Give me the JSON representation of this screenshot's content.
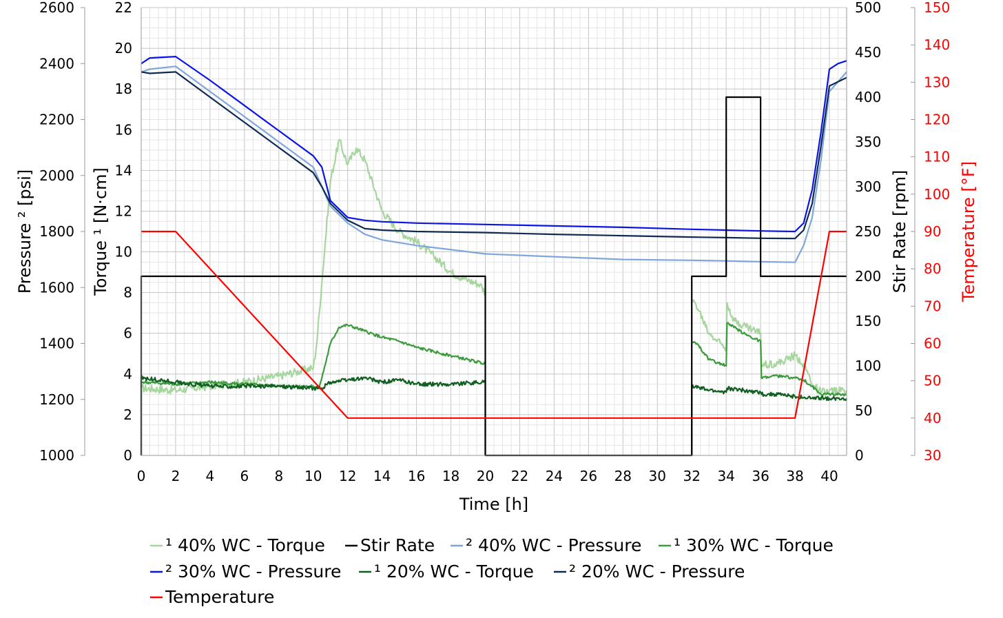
{
  "chart_data": {
    "type": "line",
    "xlabel": "Time [h]",
    "x_ticks": [
      0,
      2,
      4,
      6,
      8,
      10,
      12,
      14,
      16,
      18,
      20,
      22,
      24,
      26,
      28,
      30,
      32,
      34,
      36,
      38,
      40
    ],
    "xlim": [
      0,
      41
    ],
    "axes": {
      "pressure": {
        "label": "Pressure ² [psi]",
        "min": 1000,
        "max": 2600,
        "ticks": [
          1000,
          1200,
          1400,
          1600,
          1800,
          2000,
          2200,
          2400,
          2600
        ]
      },
      "torque": {
        "label": "Torque ¹ [N·cm]",
        "min": 0,
        "max": 22,
        "ticks": [
          0,
          2,
          4,
          6,
          8,
          10,
          12,
          14,
          16,
          18,
          20,
          22
        ]
      },
      "stir": {
        "label": "Stir Rate [rpm]",
        "min": 0,
        "max": 500,
        "ticks": [
          0,
          50,
          100,
          150,
          200,
          250,
          300,
          350,
          400,
          450,
          500
        ]
      },
      "temperature": {
        "label": "Temperature [°F]",
        "min": 30,
        "max": 150,
        "ticks": [
          30,
          40,
          50,
          60,
          70,
          80,
          90,
          100,
          110,
          120,
          130,
          140,
          150
        ],
        "color": "#ff0000"
      }
    },
    "series": [
      {
        "name": "¹ 40% WC - Torque",
        "axis": "torque",
        "color": "#a6d69e",
        "noise": 0.2,
        "points": [
          [
            0,
            3.3
          ],
          [
            2,
            3.2
          ],
          [
            4,
            3.4
          ],
          [
            6,
            3.6
          ],
          [
            8,
            3.9
          ],
          [
            9,
            4.1
          ],
          [
            10,
            4.3
          ],
          [
            10.2,
            5.5
          ],
          [
            10.5,
            8.5
          ],
          [
            11,
            13.5
          ],
          [
            11.5,
            15.5
          ],
          [
            12,
            14.3
          ],
          [
            12.5,
            15.1
          ],
          [
            13,
            14.5
          ],
          [
            14,
            12
          ],
          [
            15,
            11
          ],
          [
            16,
            10.5
          ],
          [
            17,
            9.8
          ],
          [
            18,
            9
          ],
          [
            19,
            8.6
          ],
          [
            19.7,
            8.4
          ],
          [
            20,
            8
          ]
        ]
      },
      {
        "name": "¹ 40% WC - Torque",
        "axis": "torque",
        "color": "#a6d69e",
        "noise": 0.2,
        "points": [
          [
            32,
            7.5
          ],
          [
            32.2,
            7.5
          ],
          [
            33,
            6
          ],
          [
            34,
            5.3
          ],
          [
            34.05,
            7.5
          ],
          [
            34.5,
            6.6
          ],
          [
            36,
            6
          ],
          [
            36.05,
            4.5
          ],
          [
            37,
            4.5
          ],
          [
            38,
            4.9
          ],
          [
            38.5,
            4.5
          ],
          [
            39,
            3.5
          ],
          [
            39.5,
            3.1
          ],
          [
            41,
            3.2
          ]
        ]
      },
      {
        "name": "Stir Rate",
        "axis": "stir",
        "color": "#000000",
        "noise": 0,
        "points": [
          [
            0,
            0
          ],
          [
            0,
            200
          ],
          [
            20,
            200
          ],
          [
            20,
            0
          ],
          [
            32,
            0
          ],
          [
            32,
            200
          ],
          [
            34,
            200
          ],
          [
            34,
            400
          ],
          [
            36,
            400
          ],
          [
            36,
            200
          ],
          [
            41,
            200
          ]
        ]
      },
      {
        "name": "² 40% WC - Pressure",
        "axis": "pressure",
        "color": "#7fa6dc",
        "noise": 0,
        "points": [
          [
            0,
            2370
          ],
          [
            0.5,
            2380
          ],
          [
            2,
            2390
          ],
          [
            4,
            2300
          ],
          [
            6,
            2210
          ],
          [
            8,
            2120
          ],
          [
            10,
            2030
          ],
          [
            10.5,
            1960
          ],
          [
            11,
            1890
          ],
          [
            12,
            1830
          ],
          [
            13,
            1790
          ],
          [
            14,
            1770
          ],
          [
            16,
            1750
          ],
          [
            18,
            1735
          ],
          [
            20,
            1720
          ],
          [
            24,
            1710
          ],
          [
            28,
            1700
          ],
          [
            32,
            1697
          ],
          [
            34,
            1695
          ],
          [
            36,
            1692
          ],
          [
            38,
            1690
          ],
          [
            38.5,
            1750
          ],
          [
            39,
            1850
          ],
          [
            39.5,
            2050
          ],
          [
            40,
            2300
          ],
          [
            41,
            2370
          ]
        ]
      },
      {
        "name": "¹ 30% WC - Torque",
        "axis": "torque",
        "color": "#3d9a3d",
        "noise": 0.07,
        "points": [
          [
            0,
            3.6
          ],
          [
            2,
            3.5
          ],
          [
            4,
            3.6
          ],
          [
            6,
            3.5
          ],
          [
            8,
            3.4
          ],
          [
            10,
            3.4
          ],
          [
            10.3,
            3.3
          ],
          [
            10.5,
            3.8
          ],
          [
            11,
            5.5
          ],
          [
            11.5,
            6.3
          ],
          [
            12,
            6.4
          ],
          [
            13,
            6.1
          ],
          [
            14,
            5.8
          ],
          [
            15,
            5.6
          ],
          [
            16,
            5.3
          ],
          [
            17,
            5.1
          ],
          [
            18,
            4.9
          ],
          [
            19,
            4.7
          ],
          [
            20,
            4.5
          ]
        ]
      },
      {
        "name": "¹ 30% WC - Torque",
        "axis": "torque",
        "color": "#3d9a3d",
        "noise": 0.07,
        "points": [
          [
            32,
            5.6
          ],
          [
            32.3,
            5.5
          ],
          [
            33,
            4.7
          ],
          [
            34,
            4.4
          ],
          [
            34.05,
            6.5
          ],
          [
            35,
            6
          ],
          [
            36,
            5.6
          ],
          [
            36.05,
            3.8
          ],
          [
            37,
            3.9
          ],
          [
            38,
            3.8
          ],
          [
            38.5,
            3.7
          ],
          [
            39,
            3.4
          ],
          [
            39.5,
            3.0
          ],
          [
            41,
            3.0
          ]
        ]
      },
      {
        "name": "² 30% WC - Pressure",
        "axis": "pressure",
        "color": "#0a14e6",
        "noise": 0,
        "points": [
          [
            0,
            2400
          ],
          [
            0.5,
            2420
          ],
          [
            2,
            2425
          ],
          [
            4,
            2340
          ],
          [
            6,
            2250
          ],
          [
            8,
            2160
          ],
          [
            10,
            2070
          ],
          [
            10.5,
            2030
          ],
          [
            11,
            1910
          ],
          [
            12,
            1850
          ],
          [
            13,
            1840
          ],
          [
            14,
            1835
          ],
          [
            16,
            1830
          ],
          [
            20,
            1825
          ],
          [
            24,
            1820
          ],
          [
            28,
            1815
          ],
          [
            32,
            1808
          ],
          [
            34,
            1805
          ],
          [
            36,
            1802
          ],
          [
            38,
            1800
          ],
          [
            38.5,
            1830
          ],
          [
            39,
            1950
          ],
          [
            39.5,
            2150
          ],
          [
            40,
            2380
          ],
          [
            40.5,
            2400
          ],
          [
            41,
            2410
          ]
        ]
      },
      {
        "name": "¹ 20% WC - Torque",
        "axis": "torque",
        "color": "#105f20",
        "noise": 0.1,
        "points": [
          [
            0,
            0
          ],
          [
            0,
            3.8
          ],
          [
            2,
            3.6
          ],
          [
            4,
            3.4
          ],
          [
            6,
            3.4
          ],
          [
            8,
            3.4
          ],
          [
            10,
            3.3
          ],
          [
            10.5,
            3.3
          ],
          [
            11,
            3.6
          ],
          [
            12,
            3.7
          ],
          [
            13,
            3.8
          ],
          [
            14,
            3.6
          ],
          [
            15,
            3.7
          ],
          [
            16,
            3.5
          ],
          [
            18,
            3.5
          ],
          [
            20,
            3.6
          ],
          [
            20,
            0
          ]
        ]
      },
      {
        "name": "¹ 20% WC - Torque",
        "axis": "torque",
        "color": "#105f20",
        "noise": 0.1,
        "points": [
          [
            32,
            0
          ],
          [
            32,
            3.4
          ],
          [
            33,
            3.2
          ],
          [
            34,
            3.1
          ],
          [
            34.05,
            3.3
          ],
          [
            35,
            3.2
          ],
          [
            36,
            3.1
          ],
          [
            36.05,
            3.0
          ],
          [
            37,
            3.0
          ],
          [
            38,
            2.9
          ],
          [
            39,
            2.8
          ],
          [
            40,
            2.8
          ],
          [
            41,
            2.8
          ]
        ]
      },
      {
        "name": "² 20% WC - Pressure",
        "axis": "pressure",
        "color": "#0e2a52",
        "noise": 0,
        "points": [
          [
            0,
            2370
          ],
          [
            0.5,
            2365
          ],
          [
            2,
            2370
          ],
          [
            4,
            2280
          ],
          [
            6,
            2190
          ],
          [
            8,
            2100
          ],
          [
            10,
            2010
          ],
          [
            10.5,
            1960
          ],
          [
            11,
            1900
          ],
          [
            12,
            1840
          ],
          [
            13,
            1810
          ],
          [
            14,
            1805
          ],
          [
            16,
            1800
          ],
          [
            20,
            1796
          ],
          [
            24,
            1790
          ],
          [
            28,
            1785
          ],
          [
            32,
            1780
          ],
          [
            34,
            1778
          ],
          [
            36,
            1776
          ],
          [
            38,
            1775
          ],
          [
            38.5,
            1805
          ],
          [
            39,
            1900
          ],
          [
            39.5,
            2100
          ],
          [
            40,
            2320
          ],
          [
            41,
            2350
          ]
        ]
      },
      {
        "name": "Temperature",
        "axis": "temperature",
        "color": "#ff0000",
        "noise": 0,
        "points": [
          [
            0,
            90
          ],
          [
            2,
            90
          ],
          [
            12,
            40
          ],
          [
            38,
            40
          ],
          [
            40,
            90
          ],
          [
            41,
            90
          ]
        ]
      }
    ],
    "legend": {
      "placement": "bottom",
      "entries": [
        {
          "label": "¹ 40% WC - Torque",
          "color": "#a6d69e"
        },
        {
          "label": "Stir Rate",
          "color": "#000000"
        },
        {
          "label": "² 40% WC - Pressure",
          "color": "#7fa6dc"
        },
        {
          "label": "¹ 30% WC - Torque",
          "color": "#3d9a3d"
        },
        {
          "label": "² 30% WC - Pressure",
          "color": "#0a14e6"
        },
        {
          "label": "¹ 20% WC - Torque",
          "color": "#105f20"
        },
        {
          "label": "² 20% WC - Pressure",
          "color": "#0e2a52"
        },
        {
          "label": "Temperature",
          "color": "#ff0000"
        }
      ]
    }
  }
}
